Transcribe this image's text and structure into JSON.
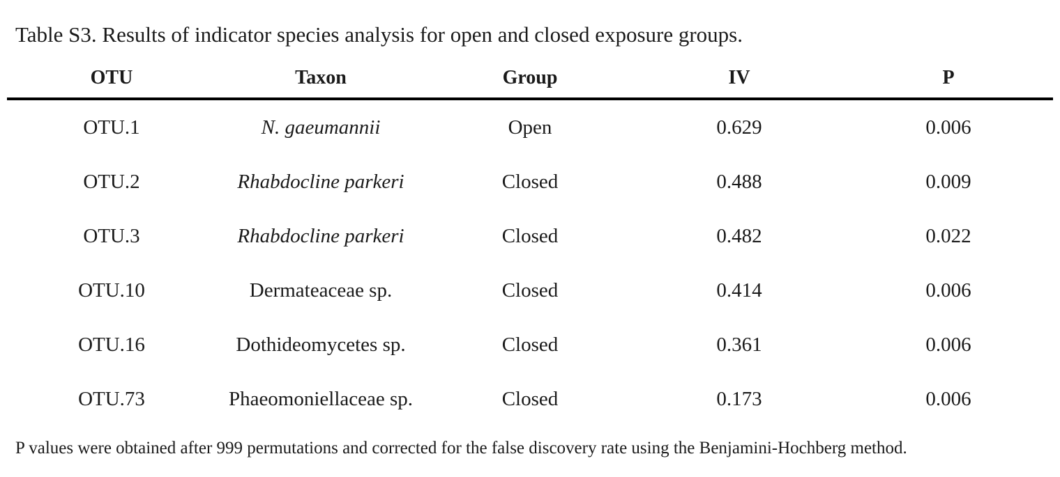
{
  "caption": "Table S3. Results of indicator species analysis for open and closed exposure groups.",
  "columns": {
    "otu": "OTU",
    "taxon": "Taxon",
    "group": "Group",
    "iv": "IV",
    "p": "P"
  },
  "rows": [
    {
      "otu": "OTU.1",
      "taxon": "N. gaeumannii",
      "taxon_italic": true,
      "group": "Open",
      "iv": "0.629",
      "p": "0.006"
    },
    {
      "otu": "OTU.2",
      "taxon": "Rhabdocline parkeri",
      "taxon_italic": true,
      "group": "Closed",
      "iv": "0.488",
      "p": "0.009"
    },
    {
      "otu": "OTU.3",
      "taxon": "Rhabdocline parkeri",
      "taxon_italic": true,
      "group": "Closed",
      "iv": "0.482",
      "p": "0.022"
    },
    {
      "otu": "OTU.10",
      "taxon": "Dermateaceae sp.",
      "taxon_italic": false,
      "group": "Closed",
      "iv": "0.414",
      "p": "0.006"
    },
    {
      "otu": "OTU.16",
      "taxon": "Dothideomycetes sp.",
      "taxon_italic": false,
      "group": "Closed",
      "iv": "0.361",
      "p": "0.006"
    },
    {
      "otu": "OTU.73",
      "taxon": "Phaeomoniellaceae sp.",
      "taxon_italic": false,
      "group": "Closed",
      "iv": "0.173",
      "p": "0.006"
    }
  ],
  "footnote": "P values were obtained after 999 permutations and corrected for the false discovery rate using the Benjamini-Hochberg method."
}
